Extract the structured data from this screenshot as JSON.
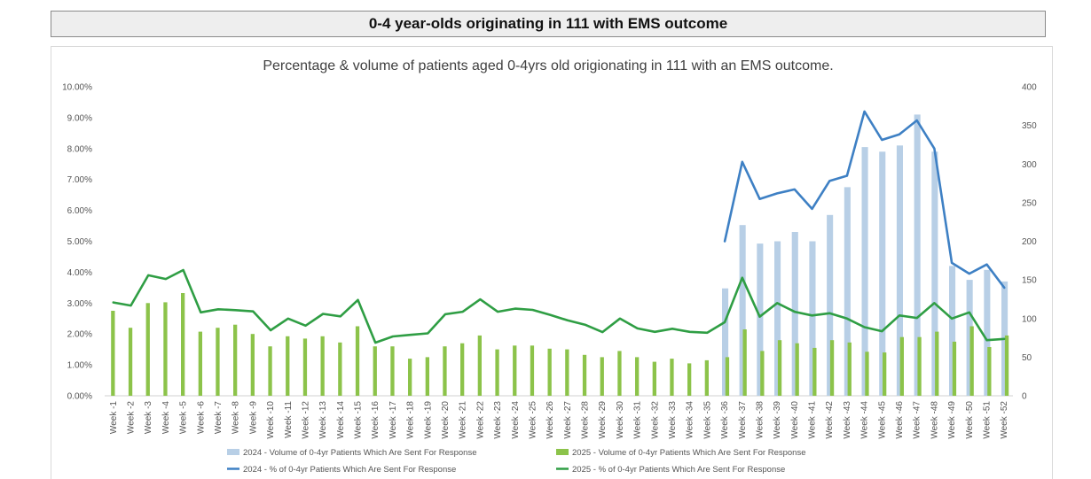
{
  "header": {
    "title": "0-4 year-olds originating in 111 with EMS outcome"
  },
  "chart_data": {
    "type": "bar",
    "title": "Percentage & volume of patients aged 0-4yrs old origionating in 111 with an EMS outcome.",
    "categories": [
      "Week -1",
      "Week -2",
      "Week -3",
      "Week -4",
      "Week -5",
      "Week -6",
      "Week -7",
      "Week -8",
      "Week -9",
      "Week -10",
      "Week -11",
      "Week -12",
      "Week -13",
      "Week -14",
      "Week -15",
      "Week -16",
      "Week -17",
      "Week -18",
      "Week -19",
      "Week -20",
      "Week -21",
      "Week -22",
      "Week -23",
      "Week -24",
      "Week -25",
      "Week -26",
      "Week -27",
      "Week -28",
      "Week -29",
      "Week -30",
      "Week -31",
      "Week -32",
      "Week -33",
      "Week -34",
      "Week -35",
      "Week -36",
      "Week -37",
      "Week -38",
      "Week -39",
      "Week -40",
      "Week -41",
      "Week -42",
      "Week -43",
      "Week -44",
      "Week -45",
      "Week -46",
      "Week -47",
      "Week -48",
      "Week -49",
      "Week -50",
      "Week -51",
      "Week -52"
    ],
    "y_left": {
      "min": 0,
      "max": 10,
      "step": 1,
      "tick_labels": [
        "0.00%",
        "1.00%",
        "2.00%",
        "3.00%",
        "4.00%",
        "5.00%",
        "6.00%",
        "7.00%",
        "8.00%",
        "9.00%",
        "10.00%"
      ]
    },
    "y_right": {
      "min": 0,
      "max": 400,
      "step": 50,
      "tick_labels": [
        "0",
        "50",
        "100",
        "150",
        "200",
        "250",
        "300",
        "350",
        "400"
      ]
    },
    "grid": false,
    "legend_position": "bottom",
    "series": [
      {
        "name": "2024 - Volume of 0-4yr Patients Which Are Sent For Response",
        "kind": "bar",
        "axis": "right",
        "color": "#b8cfe6",
        "values": [
          null,
          null,
          null,
          null,
          null,
          null,
          null,
          null,
          null,
          null,
          null,
          null,
          null,
          null,
          null,
          null,
          null,
          null,
          null,
          null,
          null,
          null,
          null,
          null,
          null,
          null,
          null,
          null,
          null,
          null,
          null,
          null,
          null,
          null,
          null,
          139,
          221,
          197,
          200,
          212,
          200,
          234,
          270,
          322,
          316,
          324,
          364,
          316,
          168,
          150,
          163,
          148
        ]
      },
      {
        "name": "2025 - Volume of 0-4yr Patients Which Are Sent For Response",
        "kind": "bar",
        "axis": "right",
        "color": "#8cc34a",
        "values": [
          110,
          88,
          120,
          121,
          133,
          83,
          88,
          92,
          80,
          64,
          77,
          74,
          77,
          69,
          90,
          64,
          64,
          48,
          50,
          64,
          68,
          78,
          60,
          65,
          65,
          61,
          60,
          53,
          50,
          58,
          50,
          44,
          48,
          42,
          46,
          50,
          86,
          58,
          72,
          68,
          62,
          72,
          69,
          57,
          56,
          76,
          76,
          83,
          70,
          90,
          63,
          78
        ]
      },
      {
        "name": "2024 - % of 0-4yr Patients Which Are Sent For Response",
        "kind": "line",
        "axis": "left",
        "color": "#3e80c4",
        "values": [
          null,
          null,
          null,
          null,
          null,
          null,
          null,
          null,
          null,
          null,
          null,
          null,
          null,
          null,
          null,
          null,
          null,
          null,
          null,
          null,
          null,
          null,
          null,
          null,
          null,
          null,
          null,
          null,
          null,
          null,
          null,
          null,
          null,
          null,
          null,
          5.0,
          7.57,
          6.37,
          6.55,
          6.68,
          6.05,
          6.95,
          7.12,
          9.2,
          8.28,
          8.46,
          8.91,
          8.0,
          4.3,
          3.95,
          4.25,
          3.5
        ]
      },
      {
        "name": "2025 - % of 0-4yr Patients Which Are Sent For Response",
        "kind": "line",
        "axis": "left",
        "color": "#2f9e44",
        "values": [
          3.02,
          2.92,
          3.9,
          3.78,
          4.07,
          2.7,
          2.8,
          2.77,
          2.73,
          2.12,
          2.5,
          2.27,
          2.65,
          2.57,
          3.1,
          1.72,
          1.92,
          1.97,
          2.02,
          2.64,
          2.72,
          3.12,
          2.72,
          2.82,
          2.78,
          2.62,
          2.44,
          2.3,
          2.06,
          2.5,
          2.18,
          2.07,
          2.17,
          2.07,
          2.04,
          2.38,
          3.82,
          2.56,
          3.0,
          2.72,
          2.6,
          2.67,
          2.5,
          2.22,
          2.09,
          2.6,
          2.52,
          3.0,
          2.5,
          2.7,
          1.8,
          1.84
        ]
      }
    ]
  }
}
